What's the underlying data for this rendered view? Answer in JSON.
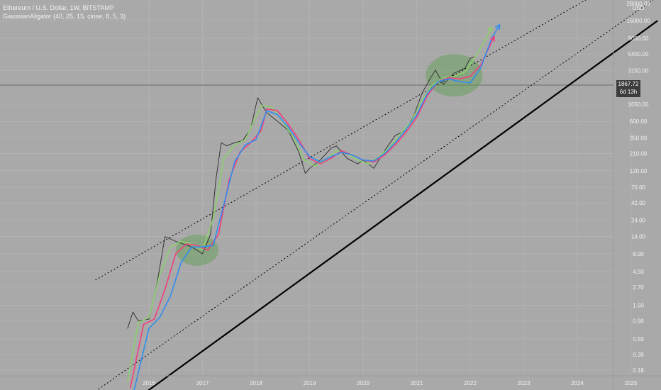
{
  "legend": {
    "title": "Ethereum / U.S. Dollar, 1W, BITSTAMP",
    "indicator": "GaussianAligator (40, 25, 15, close, 8, 5, 3)"
  },
  "price_axis": {
    "currency": "USD",
    "last_price": "1867.72",
    "countdown": "6d 13h"
  },
  "colors": {
    "background": "#a9a9a9",
    "price": "#2a2a2a",
    "fast_line": "#8bd16a",
    "mid_line": "#f23e7a",
    "slow_line": "#2f8cf0",
    "trend_line": "#000000",
    "highlight": "#5e9e4f"
  },
  "chart_data": {
    "type": "line",
    "x_unit": "year",
    "y_scale": "log",
    "y_ticks": [
      "28000.00",
      "16000.00",
      "9000.00",
      "5400.00",
      "3150.00",
      "1867.72",
      "1050.00",
      "600.00",
      "350.00",
      "210.00",
      "120.00",
      "70.00",
      "42.00",
      "24.00",
      "14.00",
      "8.00",
      "4.50",
      "2.70",
      "1.50",
      "0.90",
      "0.50",
      "0.30",
      "0.18"
    ],
    "x_ticks": [
      "2016",
      "2017",
      "2018",
      "2019",
      "2020",
      "2021",
      "2022",
      "2023",
      "2024",
      "2025"
    ],
    "series": [
      {
        "x": [
          2015.6,
          2015.7,
          2015.8,
          2016.0,
          2016.15,
          2016.3,
          2016.5,
          2016.8,
          2017.0,
          2017.15,
          2017.25,
          2017.35,
          2017.45,
          2017.6,
          2017.75,
          2017.9,
          2018.03,
          2018.2,
          2018.4,
          2018.6,
          2018.8,
          2018.92,
          2019.0,
          2019.2,
          2019.4,
          2019.5,
          2019.7,
          2019.9,
          2020.0,
          2020.2,
          2020.4,
          2020.6,
          2020.8,
          2020.95,
          2021.1,
          2021.25,
          2021.35,
          2021.5,
          2021.7,
          2021.9,
          2022.0,
          2022.1
        ],
        "y": [
          0.7,
          1.2,
          0.9,
          0.95,
          3.0,
          14.0,
          12.0,
          10.0,
          8.0,
          15.0,
          90.0,
          300.0,
          270.0,
          300.0,
          320.0,
          470.0,
          1300.0,
          800.0,
          600.0,
          450.0,
          220.0,
          110.0,
          130.0,
          170.0,
          250.0,
          270.0,
          180.0,
          150.0,
          170.0,
          130.0,
          230.0,
          380.0,
          450.0,
          730.0,
          1500.0,
          2400.0,
          3200.0,
          2000.0,
          2900.0,
          3400.0,
          4700.0,
          5000.0
        ]
      },
      {
        "x": [
          2015.6,
          2015.8,
          2016.0,
          2016.2,
          2016.4,
          2016.6,
          2016.8,
          2017.0,
          2017.2,
          2017.4,
          2017.6,
          2017.8,
          2018.0,
          2018.1,
          2018.3,
          2018.5,
          2018.7,
          2018.9,
          2019.1,
          2019.3,
          2019.5,
          2019.7,
          2019.9,
          2020.1,
          2020.3,
          2020.5,
          2020.7,
          2020.9,
          2021.1,
          2021.3,
          2021.5,
          2021.7,
          2021.9,
          2022.1,
          2022.3,
          2022.4
        ],
        "y": [
          0.12,
          0.85,
          1.0,
          4.0,
          10.0,
          12.0,
          11.0,
          9.0,
          25.0,
          180.0,
          280.0,
          330.0,
          700.0,
          1000.0,
          950.0,
          600.0,
          350.0,
          170.0,
          140.0,
          170.0,
          230.0,
          210.0,
          170.0,
          150.0,
          190.0,
          260.0,
          400.0,
          600.0,
          1200.0,
          2000.0,
          2500.0,
          2600.0,
          3000.0,
          5000.0,
          9000.0,
          13000.0
        ]
      },
      {
        "x": [
          2015.65,
          2015.9,
          2016.1,
          2016.3,
          2016.5,
          2016.7,
          2016.9,
          2017.1,
          2017.3,
          2017.5,
          2017.7,
          2017.9,
          2018.1,
          2018.2,
          2018.4,
          2018.6,
          2018.8,
          2019.0,
          2019.2,
          2019.4,
          2019.6,
          2019.8,
          2020.0,
          2020.2,
          2020.4,
          2020.6,
          2020.8,
          2021.0,
          2021.2,
          2021.4,
          2021.6,
          2021.8,
          2022.0,
          2022.2,
          2022.4,
          2022.45
        ],
        "y": [
          0.1,
          0.8,
          0.95,
          2.5,
          8.0,
          11.0,
          10.5,
          9.0,
          15.0,
          90.0,
          220.0,
          300.0,
          450.0,
          900.0,
          850.0,
          550.0,
          330.0,
          180.0,
          150.0,
          180.0,
          230.0,
          200.0,
          170.0,
          160.0,
          200.0,
          280.0,
          420.0,
          680.0,
          1400.0,
          2200.0,
          2500.0,
          2400.0,
          2600.0,
          3800.0,
          8000.0,
          9500.0
        ]
      },
      {
        "x": [
          2015.7,
          2016.0,
          2016.2,
          2016.4,
          2016.6,
          2016.8,
          2017.0,
          2017.2,
          2017.4,
          2017.6,
          2017.8,
          2018.0,
          2018.2,
          2018.4,
          2018.6,
          2018.8,
          2019.0,
          2019.2,
          2019.4,
          2019.6,
          2019.8,
          2020.0,
          2020.2,
          2020.4,
          2020.6,
          2020.8,
          2021.0,
          2021.2,
          2021.4,
          2021.6,
          2021.8,
          2022.0,
          2022.2,
          2022.4,
          2022.55
        ],
        "y": [
          0.08,
          0.7,
          1.0,
          2.0,
          6.0,
          10.0,
          10.0,
          10.5,
          40.0,
          160.0,
          280.0,
          330.0,
          850.0,
          750.0,
          500.0,
          300.0,
          190.0,
          160.0,
          190.0,
          220.0,
          200.0,
          170.0,
          165.0,
          210.0,
          300.0,
          460.0,
          740.0,
          1500.0,
          2200.0,
          2400.0,
          2200.0,
          2100.0,
          3500.0,
          9000.0,
          14000.0
        ]
      }
    ],
    "annotations": [
      {
        "type": "line",
        "x": [
          2015.0,
          2025.5
        ],
        "y": [
          0.09,
          35000.0
        ]
      },
      {
        "type": "line",
        "x": [
          2015.0,
          2025.5
        ],
        "y": [
          3.4,
          120000.0
        ]
      },
      {
        "type": "line",
        "x": [
          2015.5,
          2025.5
        ],
        "y": [
          0.05,
          16000.0
        ]
      },
      {
        "type": "ellipse",
        "x": 2016.9,
        "y": 9.0
      },
      {
        "type": "ellipse",
        "x": 2021.7,
        "y": 2700.0
      }
    ]
  }
}
